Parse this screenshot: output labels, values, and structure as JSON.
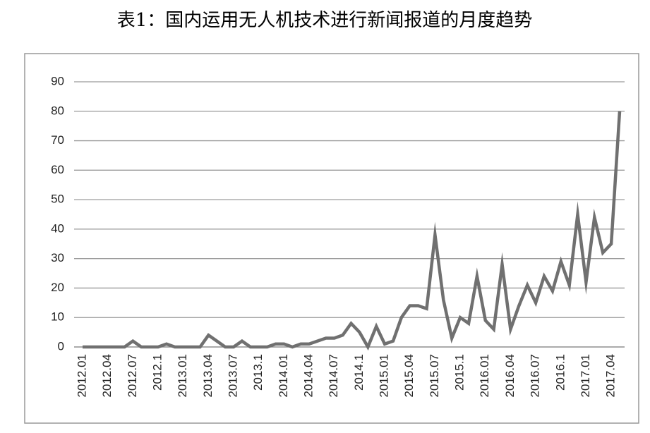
{
  "chart_data": {
    "type": "line",
    "title": "表1：国内运用无人机技术进行新闻报道的月度趋势",
    "categories": [
      "2012.01",
      null,
      null,
      "2012.04",
      null,
      null,
      "2012.07",
      null,
      null,
      "2012.1",
      null,
      null,
      "2013.01",
      null,
      null,
      "2013.04",
      null,
      null,
      "2013.07",
      null,
      null,
      "2013.1",
      null,
      null,
      "2014.01",
      null,
      null,
      "2014.04",
      null,
      null,
      "2014.07",
      null,
      null,
      "2014.1",
      null,
      null,
      "2015.01",
      null,
      null,
      "2015.04",
      null,
      null,
      "2015.07",
      null,
      null,
      "2015.1",
      null,
      null,
      "2016.01",
      null,
      null,
      "2016.04",
      null,
      null,
      "2016.07",
      null,
      null,
      "2016.1",
      null,
      null,
      "2017.01",
      null,
      null,
      "2017.04",
      null
    ],
    "values": [
      0,
      0,
      0,
      0,
      0,
      0,
      2,
      0,
      0,
      0,
      1,
      0,
      0,
      0,
      0,
      4,
      2,
      0,
      0,
      2,
      0,
      0,
      0,
      1,
      1,
      0,
      1,
      1,
      2,
      3,
      3,
      4,
      8,
      5,
      0,
      7,
      1,
      2,
      10,
      14,
      14,
      13,
      38,
      16,
      3,
      10,
      8,
      24,
      9,
      6,
      28,
      6,
      14,
      21,
      15,
      24,
      19,
      29,
      21,
      45,
      22,
      44,
      32,
      35,
      80
    ],
    "color": "#707070",
    "ylim": [
      0,
      90
    ],
    "yticks": [
      0,
      10,
      20,
      30,
      40,
      50,
      60,
      70,
      80,
      90
    ],
    "grid": true
  }
}
